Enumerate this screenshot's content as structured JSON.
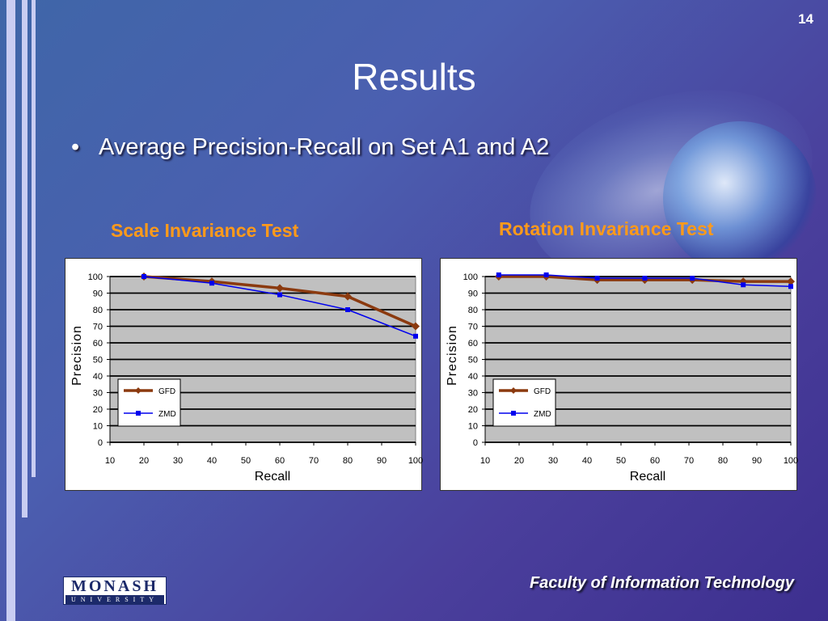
{
  "slide": {
    "page_number": "14",
    "title": "Results",
    "bullet": "Average Precision-Recall on Set A1 and A2",
    "footer": "Faculty of Information Technology",
    "logo": {
      "name": "MONASH",
      "subtitle": "UNIVERSITY"
    }
  },
  "colors": {
    "gfd": "#8b3a0f",
    "zmd": "#0000ee",
    "chart_title": "#ff9a1a",
    "plot_bg": "#c0c0c0"
  },
  "chart_data": [
    {
      "type": "line",
      "title": "Scale Invariance Test",
      "xlabel": "Recall",
      "ylabel": "Precision",
      "x_ticks": [
        "10",
        "20",
        "30",
        "40",
        "50",
        "60",
        "70",
        "80",
        "90",
        "100"
      ],
      "y_ticks": [
        "0",
        "10",
        "20",
        "30",
        "40",
        "50",
        "60",
        "70",
        "80",
        "90",
        "100"
      ],
      "xlim": [
        10,
        100
      ],
      "ylim": [
        0,
        100
      ],
      "grid": true,
      "legend": "bottom-left",
      "series": [
        {
          "name": "GFD",
          "x": [
            20,
            40,
            60,
            80,
            100
          ],
          "values": [
            100,
            97,
            93,
            88,
            70
          ]
        },
        {
          "name": "ZMD",
          "x": [
            20,
            40,
            60,
            80,
            100
          ],
          "values": [
            100,
            96,
            89,
            80,
            64
          ]
        }
      ]
    },
    {
      "type": "line",
      "title": "Rotation Invariance Test",
      "xlabel": "Recall",
      "ylabel": "Precision",
      "x_ticks": [
        "10",
        "20",
        "30",
        "40",
        "50",
        "60",
        "70",
        "80",
        "90",
        "100"
      ],
      "y_ticks": [
        "0",
        "10",
        "20",
        "30",
        "40",
        "50",
        "60",
        "70",
        "80",
        "90",
        "100"
      ],
      "xlim": [
        10,
        100
      ],
      "ylim": [
        0,
        100
      ],
      "grid": true,
      "legend": "bottom-left",
      "series": [
        {
          "name": "GFD",
          "x": [
            14,
            28,
            43,
            57,
            71,
            86,
            100
          ],
          "values": [
            100,
            100,
            98,
            98,
            98,
            97,
            97
          ]
        },
        {
          "name": "ZMD",
          "x": [
            14,
            28,
            43,
            57,
            71,
            86,
            100
          ],
          "values": [
            101,
            101,
            99,
            99,
            99,
            95,
            94
          ]
        }
      ]
    }
  ]
}
